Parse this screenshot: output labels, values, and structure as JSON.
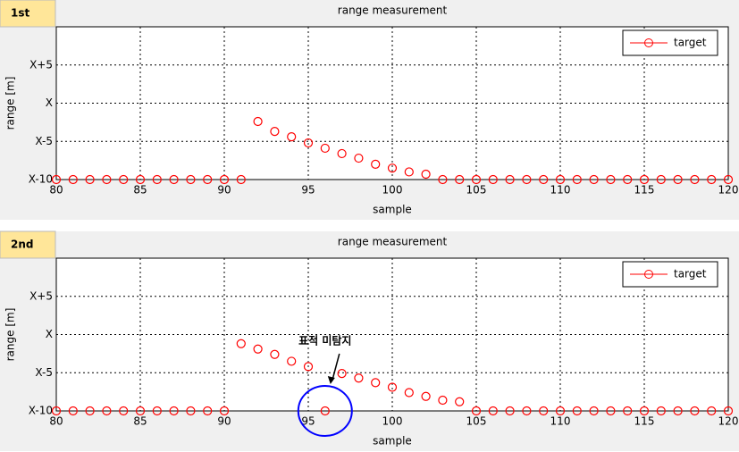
{
  "chart_data": [
    {
      "type": "scatter",
      "panel_label": "1st",
      "title": "range measurement",
      "xlabel": "sample",
      "ylabel": "range [m]",
      "x": [
        80,
        81,
        82,
        83,
        84,
        85,
        86,
        87,
        88,
        89,
        90,
        91,
        92,
        93,
        94,
        95,
        96,
        97,
        98,
        99,
        100,
        101,
        102,
        103,
        104,
        105,
        106,
        107,
        108,
        109,
        110,
        111,
        112,
        113,
        114,
        115,
        116,
        117,
        118,
        119,
        120
      ],
      "series": [
        {
          "name": "target",
          "color": "#ff0000",
          "values": [
            -10,
            -10,
            -10,
            -10,
            -10,
            -10,
            -10,
            -10,
            -10,
            -10,
            -10,
            -10,
            -2.4,
            -3.7,
            -4.4,
            -5.2,
            -5.9,
            -6.6,
            -7.2,
            -8.0,
            -8.5,
            -9.0,
            -9.3,
            -10,
            -10,
            -10,
            -10,
            -10,
            -10,
            -10,
            -10,
            -10,
            -10,
            -10,
            -10,
            -10,
            -10,
            -10,
            -10,
            -10,
            -10
          ]
        }
      ],
      "xlim": [
        80,
        120
      ],
      "xticks": [
        80,
        85,
        90,
        95,
        100,
        105,
        110,
        115,
        120
      ],
      "ylim": [
        -10,
        10
      ],
      "yticks": [
        {
          "value": -10,
          "label": "X-10"
        },
        {
          "value": -5,
          "label": "X-5"
        },
        {
          "value": 0,
          "label": "X"
        },
        {
          "value": 5,
          "label": "X+5"
        }
      ],
      "grid": true,
      "legend": "upper right"
    },
    {
      "type": "scatter",
      "panel_label": "2nd",
      "title": "range measurement",
      "xlabel": "sample",
      "ylabel": "range [m]",
      "x": [
        80,
        81,
        82,
        83,
        84,
        85,
        86,
        87,
        88,
        89,
        90,
        91,
        92,
        93,
        94,
        95,
        96,
        97,
        98,
        99,
        100,
        101,
        102,
        103,
        104,
        105,
        106,
        107,
        108,
        109,
        110,
        111,
        112,
        113,
        114,
        115,
        116,
        117,
        118,
        119,
        120
      ],
      "series": [
        {
          "name": "target",
          "color": "#ff0000",
          "values": [
            -10,
            -10,
            -10,
            -10,
            -10,
            -10,
            -10,
            -10,
            -10,
            -10,
            -10,
            -1.2,
            -1.9,
            -2.6,
            -3.5,
            -4.2,
            -10,
            -5.1,
            -5.7,
            -6.3,
            -6.9,
            -7.6,
            -8.1,
            -8.6,
            -8.8,
            -10,
            -10,
            -10,
            -10,
            -10,
            -10,
            -10,
            -10,
            -10,
            -10,
            -10,
            -10,
            -10,
            -10,
            -10,
            -10
          ]
        }
      ],
      "xlim": [
        80,
        120
      ],
      "xticks": [
        80,
        85,
        90,
        95,
        100,
        105,
        110,
        115,
        120
      ],
      "ylim": [
        -10,
        10
      ],
      "yticks": [
        {
          "value": -10,
          "label": "X-10"
        },
        {
          "value": -5,
          "label": "X-5"
        },
        {
          "value": 0,
          "label": "X"
        },
        {
          "value": 5,
          "label": "X+5"
        }
      ],
      "grid": true,
      "legend": "upper right",
      "annotations": [
        {
          "text": "표적 미탐지",
          "x": 96,
          "y": -10
        }
      ]
    }
  ]
}
